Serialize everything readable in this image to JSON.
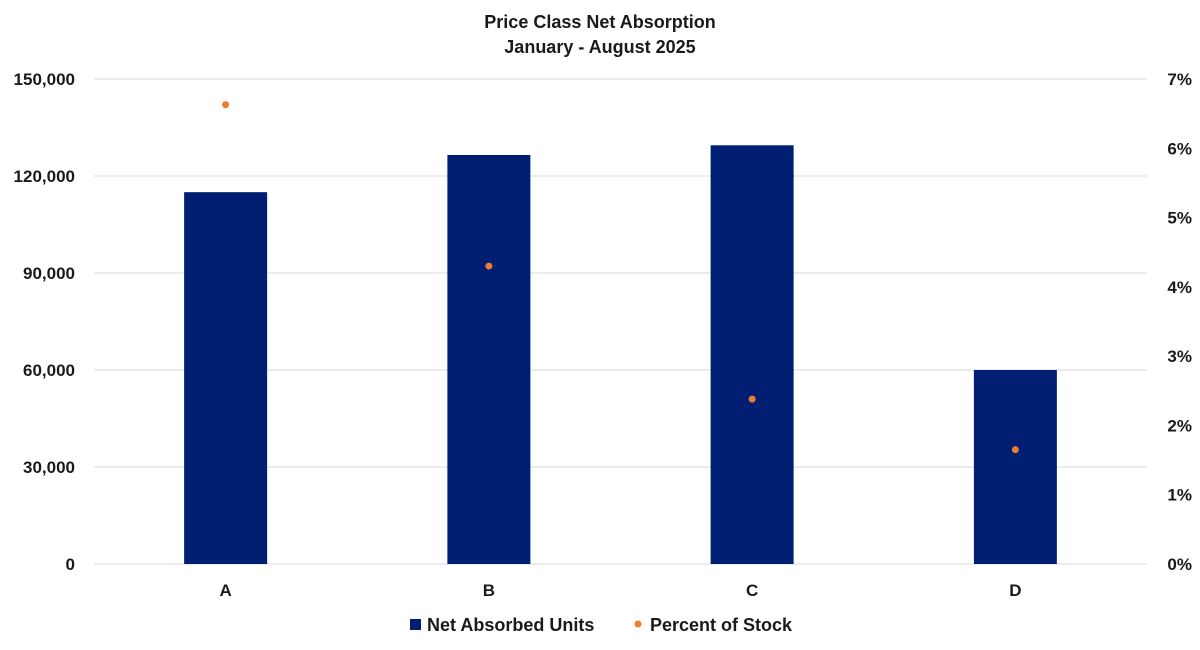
{
  "chart_data": {
    "type": "bar",
    "title": "Price Class Net Absorption",
    "subtitle": "January - August 2025",
    "categories": [
      "A",
      "B",
      "C",
      "D"
    ],
    "series": [
      {
        "name": "Net Absorbed Units",
        "type": "bar",
        "axis": "left",
        "color": "#001f73",
        "values": [
          115000,
          126500,
          129500,
          60000
        ]
      },
      {
        "name": "Percent of Stock",
        "type": "scatter",
        "axis": "right",
        "color": "#ed7d31",
        "values": [
          6.63,
          4.3,
          2.38,
          1.65
        ]
      }
    ],
    "y_left": {
      "ylim": [
        0,
        150000
      ],
      "ticks": [
        0,
        30000,
        60000,
        90000,
        120000,
        150000
      ],
      "tick_labels": [
        "0",
        "30,000",
        "60,000",
        "90,000",
        "120,000",
        "150,000"
      ]
    },
    "y_right": {
      "ylim": [
        0,
        7
      ],
      "ticks": [
        0,
        1,
        2,
        3,
        4,
        5,
        6,
        7
      ],
      "tick_labels": [
        "0%",
        "1%",
        "2%",
        "3%",
        "4%",
        "5%",
        "6%",
        "7%"
      ]
    },
    "grid": true,
    "legend": "bottom-center",
    "xlabel": "",
    "ylabel": ""
  }
}
